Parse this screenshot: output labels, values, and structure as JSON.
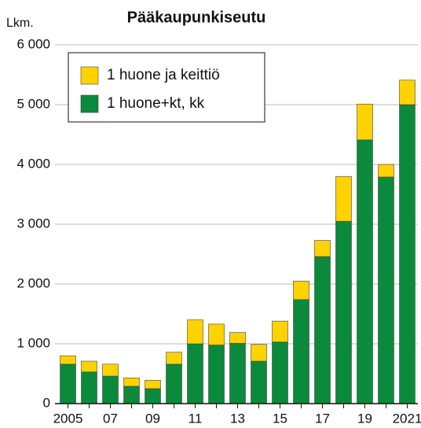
{
  "chart_data": {
    "type": "stacked_bar",
    "title": "Pääkaupunkiseutu",
    "y_label": "Lkm.",
    "categories": [
      "2005",
      null,
      "07",
      null,
      "09",
      null,
      "11",
      null,
      "13",
      null,
      "15",
      null,
      "17",
      null,
      "19",
      null,
      "2021"
    ],
    "series": [
      {
        "name": "1 huone+kt, kk",
        "color": "#0b8a3b",
        "values": [
          660,
          530,
          460,
          290,
          250,
          660,
          1000,
          980,
          1010,
          710,
          1030,
          1740,
          2460,
          3050,
          4410,
          3790,
          5000
        ]
      },
      {
        "name": "1 huone ja keittiö",
        "color": "#ffd200",
        "values": [
          140,
          180,
          200,
          140,
          140,
          200,
          400,
          350,
          180,
          280,
          350,
          310,
          270,
          750,
          600,
          210,
          410
        ]
      }
    ],
    "ylim": [
      0,
      6000
    ],
    "yticks": [
      0,
      {
        "value": 1000,
        "label": "1 000"
      },
      {
        "value": 2000,
        "label": "2 000"
      },
      {
        "value": 3000,
        "label": "3 000"
      },
      {
        "value": 4000,
        "label": "4 000"
      },
      {
        "value": 5000,
        "label": "5 000"
      },
      {
        "value": 6000,
        "label": "6 000"
      }
    ],
    "grid": true,
    "legend": "upper left"
  }
}
